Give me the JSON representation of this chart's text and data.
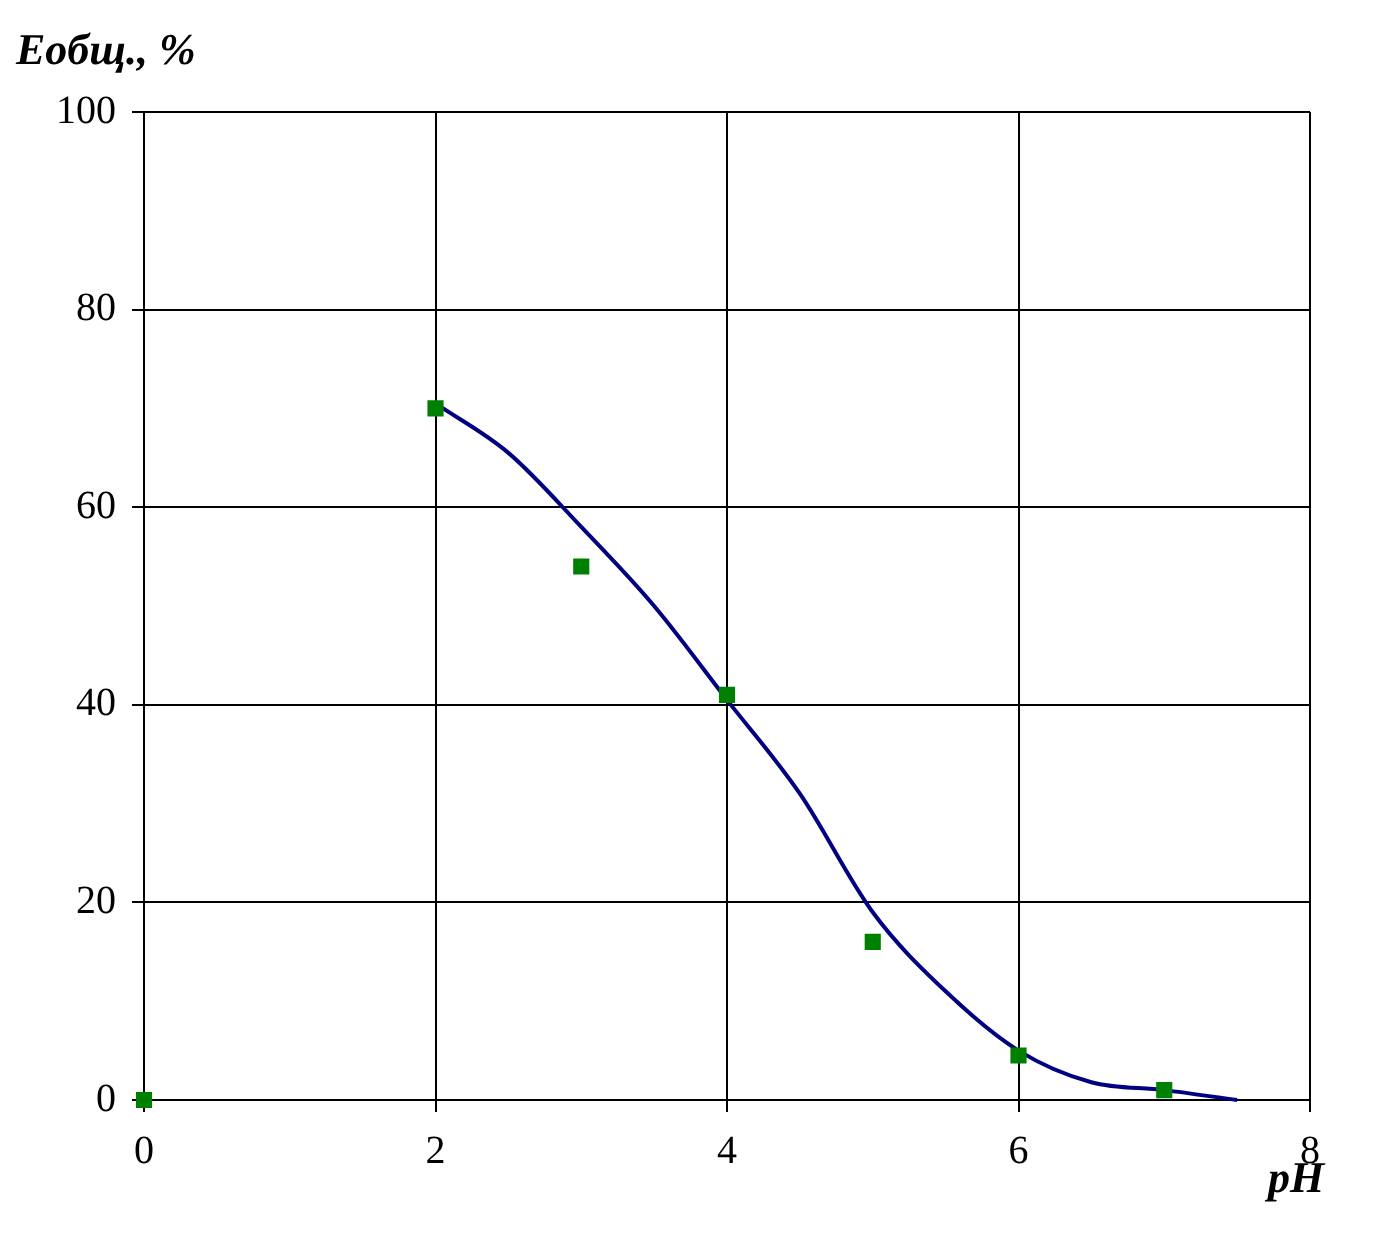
{
  "chart_data": {
    "type": "scatter",
    "ylabel": "Еобщ., %",
    "xlabel": "pH",
    "xlim": [
      0,
      8
    ],
    "xticks": [
      0,
      2,
      4,
      6,
      8
    ],
    "ylim": [
      0,
      100
    ],
    "yticks": [
      0,
      20,
      40,
      60,
      80,
      100
    ],
    "grid": true,
    "series": [
      {
        "color": "#008000",
        "marker": "square",
        "x": [
          0,
          2,
          3,
          4,
          5,
          6,
          7
        ],
        "values": [
          0,
          70,
          54,
          41,
          16,
          4.5,
          1
        ]
      },
      {
        "type": "line",
        "color": "#000080",
        "marker": "none",
        "x": [
          2,
          2.5,
          3,
          3.5,
          4,
          4.5,
          5,
          5.5,
          6,
          6.5,
          7,
          7.5
        ],
        "values": [
          70.5,
          65.5,
          58,
          50,
          40.5,
          31,
          19,
          11,
          5,
          1.8,
          1,
          0
        ]
      }
    ]
  }
}
